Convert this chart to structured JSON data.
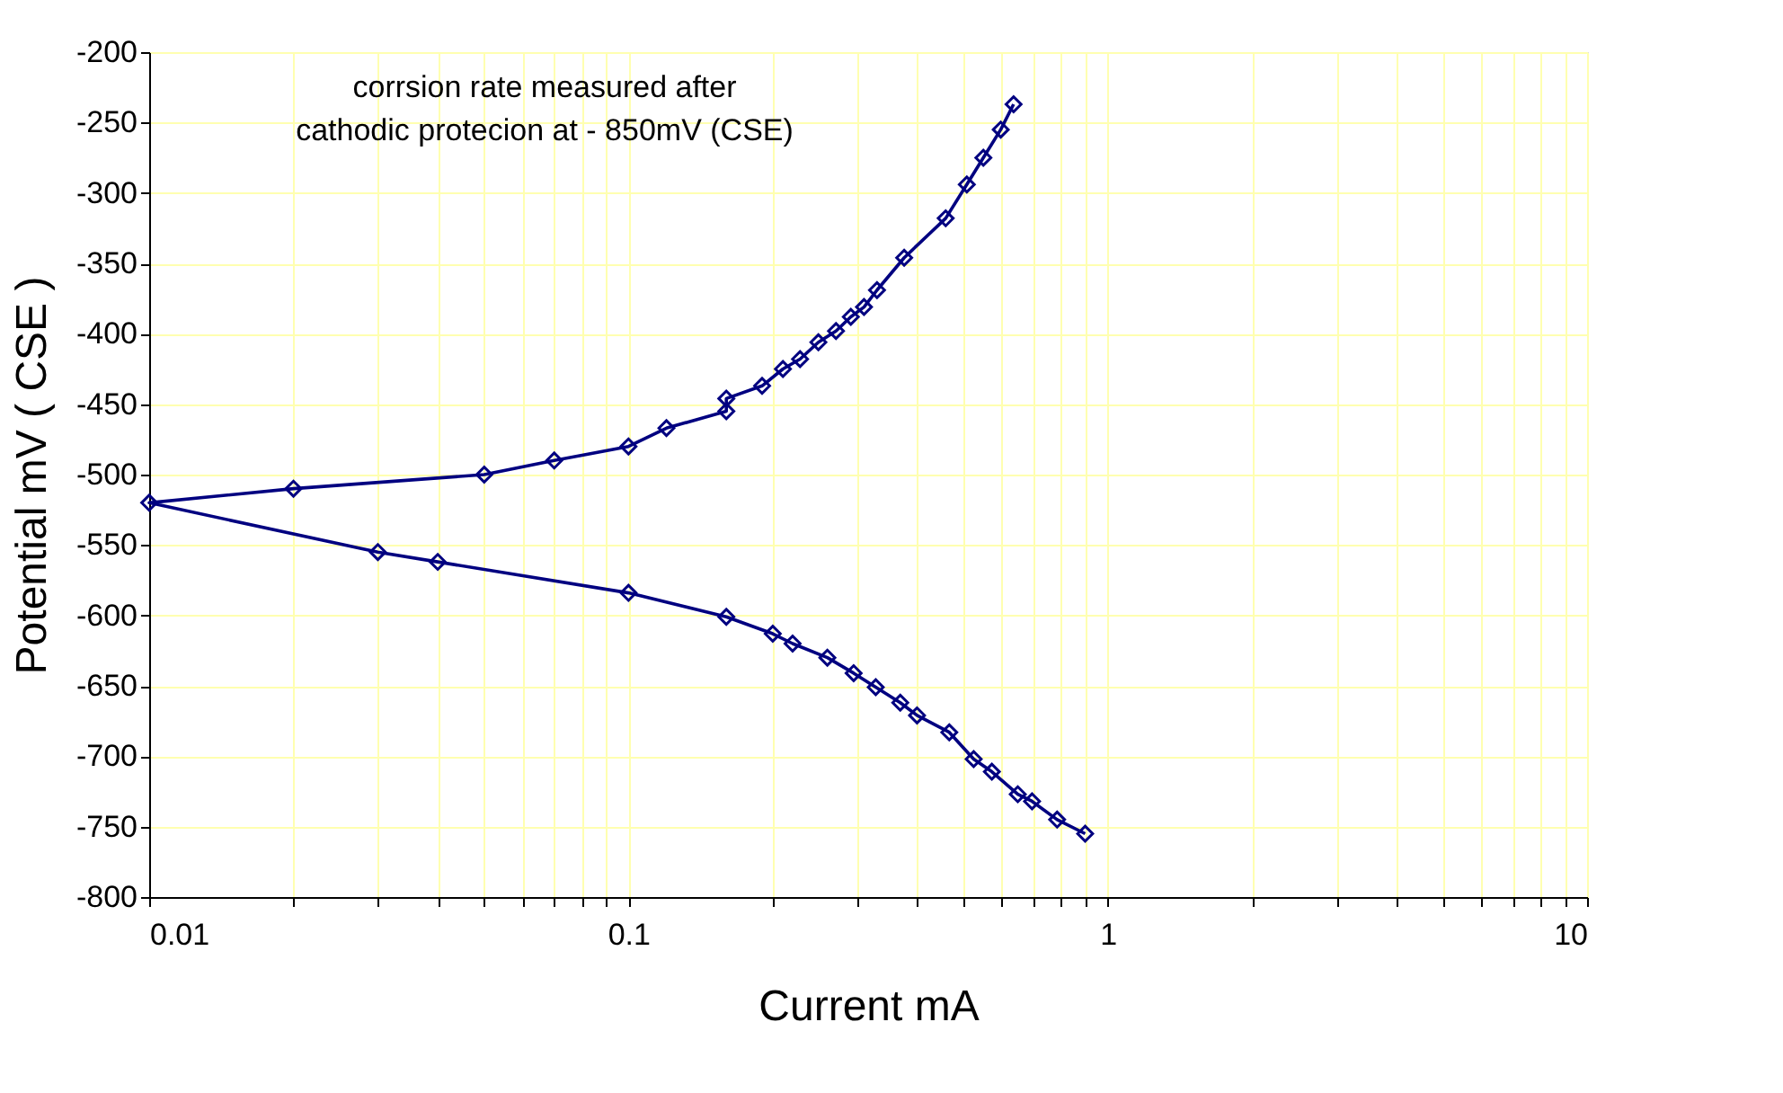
{
  "chart_data": {
    "type": "line",
    "xlabel": "Current mA",
    "ylabel": "Potential mV ( CSE )",
    "annotations": [
      "corrsion rate measured after",
      "cathodic protecion at - 850mV (CSE)"
    ],
    "log": "x",
    "xlim": [
      0.01,
      10
    ],
    "xticks": [
      0.01,
      0.1,
      1,
      10
    ],
    "ylim": [
      -800,
      -200
    ],
    "yticks": [
      -800,
      -750,
      -700,
      -650,
      -600,
      -550,
      -500,
      -450,
      -400,
      -350,
      -300,
      -250,
      -200
    ],
    "grid": true,
    "marker": "diamond",
    "line_style": "solid",
    "series": [
      {
        "color": "#000080",
        "x": [
          0.897,
          0.784,
          0.695,
          0.649,
          0.573,
          0.525,
          0.467,
          0.4,
          0.369,
          0.328,
          0.295,
          0.26,
          0.22,
          0.2,
          0.16,
          0.1,
          0.04,
          0.03,
          0.01,
          0.02,
          0.05,
          0.07,
          0.1,
          0.12,
          0.16,
          0.16,
          0.19,
          0.21,
          0.228,
          0.249,
          0.271,
          0.291,
          0.31,
          0.33,
          0.376,
          0.459,
          0.508,
          0.55,
          0.598,
          0.636
        ],
        "values": [
          -755,
          -745,
          -732,
          -727,
          -711,
          -702,
          -683,
          -671,
          -662,
          -651,
          -641,
          -630,
          -620,
          -613,
          -601,
          -584,
          -562,
          -555,
          -520,
          -510,
          -500,
          -490,
          -480,
          -467,
          -455,
          -446,
          -437,
          -425,
          -418,
          -406,
          -398,
          -388,
          -381,
          -369,
          -346,
          -318,
          -294,
          -275,
          -255,
          -237
        ]
      }
    ]
  }
}
